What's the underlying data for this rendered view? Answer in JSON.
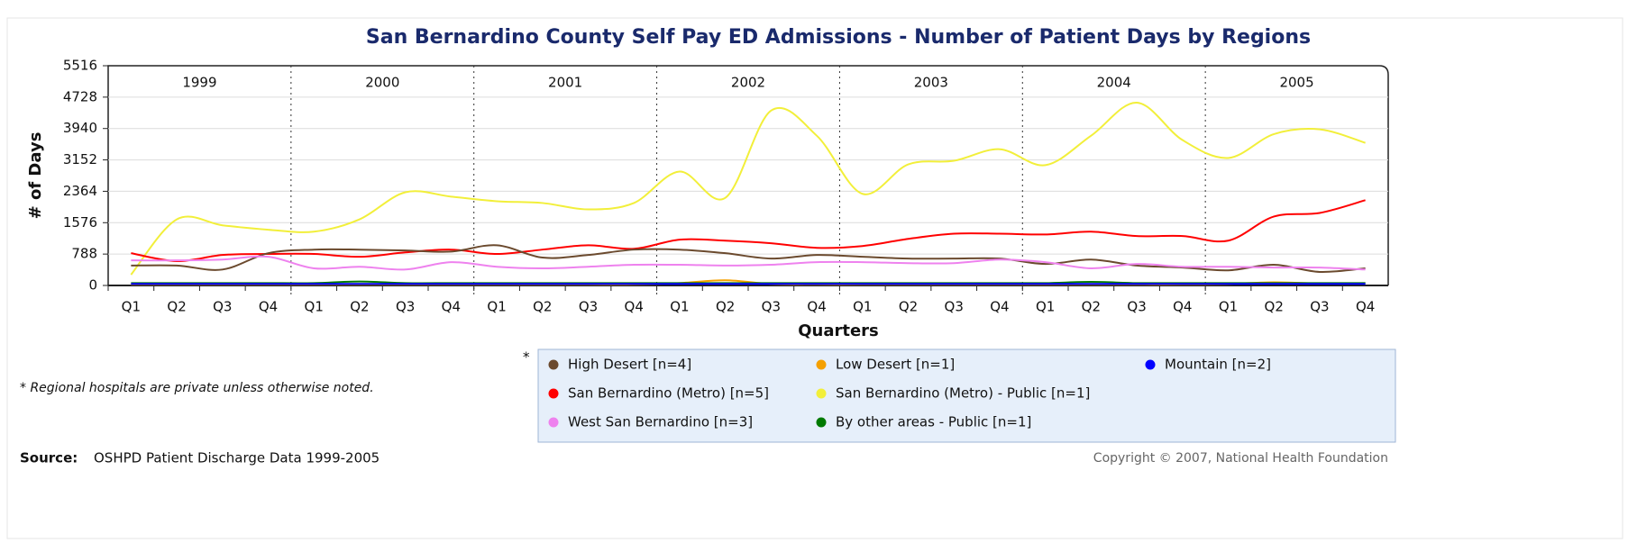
{
  "chart_data": {
    "type": "line",
    "title": "San Bernardino County Self Pay ED Admissions - Number of Patient Days by Regions",
    "x_label": "Quarters",
    "y_label": "# of Days",
    "years": [
      "1999",
      "2000",
      "2001",
      "2002",
      "2003",
      "2004",
      "2005"
    ],
    "categories": [
      "Q1",
      "Q2",
      "Q3",
      "Q4",
      "Q1",
      "Q2",
      "Q3",
      "Q4",
      "Q1",
      "Q2",
      "Q3",
      "Q4",
      "Q1",
      "Q2",
      "Q3",
      "Q4",
      "Q1",
      "Q2",
      "Q3",
      "Q4",
      "Q1",
      "Q2",
      "Q3",
      "Q4",
      "Q1",
      "Q2",
      "Q3",
      "Q4"
    ],
    "ylim": [
      0,
      5516
    ],
    "yticks": [
      0,
      788,
      1576,
      2364,
      3152,
      3940,
      4728,
      5516
    ],
    "grid": true,
    "series": [
      {
        "name": "High Desert [n=4]",
        "color": "#6b4a2e",
        "values": [
          500,
          500,
          400,
          810,
          900,
          900,
          880,
          850,
          1010,
          700,
          765,
          900,
          900,
          810,
          675,
          765,
          720,
          675,
          675,
          675,
          540,
          650,
          500,
          450,
          380,
          520,
          340,
          430
        ]
      },
      {
        "name": "Low Desert [n=1]",
        "color": "#f5a000",
        "values": [
          30,
          30,
          30,
          30,
          30,
          30,
          30,
          30,
          30,
          30,
          30,
          30,
          60,
          130,
          40,
          30,
          30,
          30,
          30,
          30,
          30,
          30,
          30,
          30,
          40,
          80,
          50,
          60
        ]
      },
      {
        "name": "Mountain [n=2]",
        "color": "#0000ff",
        "values": [
          40,
          40,
          40,
          40,
          40,
          40,
          40,
          40,
          40,
          40,
          40,
          40,
          40,
          40,
          40,
          40,
          40,
          40,
          40,
          40,
          40,
          40,
          40,
          40,
          40,
          40,
          40,
          40
        ]
      },
      {
        "name": "San Bernardino (Metro) [n=5]",
        "color": "#ff0000",
        "values": [
          810,
          610,
          765,
          790,
          790,
          720,
          830,
          900,
          790,
          900,
          1010,
          920,
          1150,
          1125,
          1060,
          945,
          990,
          1170,
          1300,
          1300,
          1280,
          1350,
          1240,
          1240,
          1125,
          1730,
          1820,
          2140
        ]
      },
      {
        "name": "San Bernardino (Metro) - Public [n=1]",
        "color": "#f2ef3a",
        "values": [
          270,
          1660,
          1510,
          1400,
          1350,
          1660,
          2340,
          2230,
          2115,
          2070,
          1910,
          2070,
          2860,
          2200,
          4390,
          3760,
          2300,
          3040,
          3130,
          3420,
          3020,
          3760,
          4590,
          3650,
          3200,
          3800,
          3920,
          3580
        ]
      },
      {
        "name": "West San Bernardino [n=3]",
        "color": "#ee82ee",
        "values": [
          630,
          630,
          650,
          720,
          430,
          470,
          400,
          585,
          470,
          430,
          470,
          520,
          520,
          500,
          520,
          585,
          585,
          560,
          560,
          650,
          585,
          430,
          540,
          470,
          470,
          450,
          450,
          400
        ]
      },
      {
        "name": "By other areas - Public [n=1]",
        "color": "#007a00",
        "values": [
          60,
          60,
          60,
          60,
          60,
          100,
          60,
          60,
          60,
          60,
          60,
          60,
          60,
          60,
          60,
          60,
          60,
          60,
          60,
          60,
          60,
          90,
          60,
          60,
          60,
          60,
          60,
          60
        ]
      }
    ],
    "note": "* Regional hospitals are private unless otherwise noted.",
    "legend_marker": "*",
    "source_label": "Source:",
    "source": "OSHPD Patient Discharge Data 1999-2005",
    "copyright": "Copyright © 2007, National Health Foundation"
  }
}
